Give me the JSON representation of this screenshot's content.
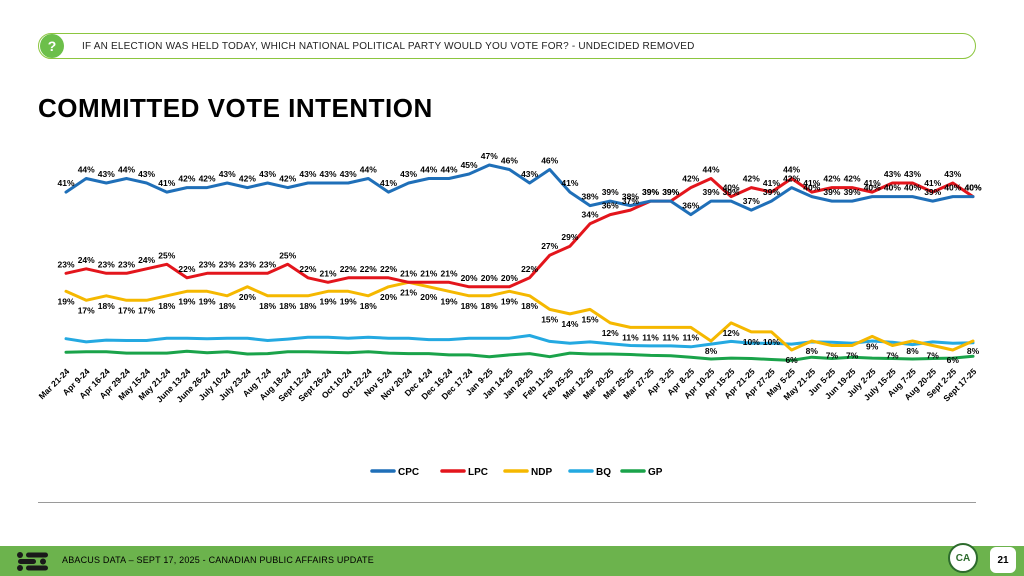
{
  "header": {
    "question": "IF AN ELECTION WAS HELD TODAY, WHICH NATIONAL POLITICAL PARTY WOULD YOU VOTE FOR? - UNDECIDED REMOVED",
    "icon": "question-icon",
    "title": "COMMITTED VOTE INTENTION"
  },
  "footer": {
    "text": "ABACUS DATA – SEPT 17, 2025 - CANADIAN PUBLIC AFFAIRS UPDATE",
    "logo_text": "CA",
    "page_number": "21"
  },
  "colors": {
    "accent_green": "#6cb34d",
    "CPC": "#1f6fb8",
    "LPC": "#e3151c",
    "NDP": "#f5b800",
    "BQ": "#24a9e1",
    "GP": "#1aa34a"
  },
  "chart_data": {
    "type": "line",
    "legend_position": "bottom",
    "grid": false,
    "categories": [
      "Mar 21-24",
      "Apr 9-24",
      "Apr 16-24",
      "Apr 29-24",
      "May 15-24",
      "May 21-24",
      "June 13-24",
      "June 26-24",
      "July 10-24",
      "July 23-24",
      "Aug 7-24",
      "Aug 18-24",
      "Sept 12-24",
      "Sept 26-24",
      "Oct 10-24",
      "Oct 22-24",
      "Nov 5-24",
      "Nov 20-24",
      "Dec 4-24",
      "Dec 16-24",
      "Dec 17-24",
      "Jan 9-25",
      "Jan 14-25",
      "Jan 28-25",
      "Feb 11-25",
      "Feb 25-25",
      "Mar 12-25",
      "Mar 20-25",
      "Mar 25-25",
      "Mar 27-25",
      "Apr 3-25",
      "Apr 8-25",
      "Apr 10-25",
      "Apr 15-25",
      "Apr 21-25",
      "Apr 27-25",
      "May 5-25",
      "May 21-25",
      "Jun 5-25",
      "Jun 19-25",
      "July 2-25",
      "July 15-25",
      "Aug 7-25",
      "Aug 20-25",
      "Sept 2-25",
      "Sept 17-25"
    ],
    "series": [
      {
        "name": "CPC",
        "color": "#1f6fb8",
        "label_pos": "above",
        "values": [
          41,
          44,
          43,
          44,
          43,
          41,
          42,
          42,
          43,
          42,
          43,
          42,
          43,
          43,
          43,
          44,
          41,
          43,
          44,
          44,
          45,
          47,
          46,
          43,
          46,
          41,
          38,
          39,
          38,
          39,
          39,
          36,
          39,
          39,
          37,
          39,
          42,
          40,
          39,
          39,
          40,
          40,
          40,
          39,
          40,
          40
        ]
      },
      {
        "name": "LPC",
        "color": "#e3151c",
        "label_pos": "above",
        "values": [
          23,
          24,
          23,
          23,
          24,
          25,
          22,
          23,
          23,
          23,
          23,
          25,
          22,
          21,
          22,
          22,
          22,
          21,
          21,
          21,
          20,
          20,
          20,
          22,
          27,
          29,
          34,
          36,
          37,
          39,
          39,
          42,
          44,
          40,
          42,
          41,
          44,
          41,
          42,
          42,
          41,
          43,
          43,
          41,
          43,
          40
        ]
      },
      {
        "name": "NDP",
        "color": "#f5b800",
        "label_pos": "below",
        "values": [
          19,
          17,
          18,
          17,
          17,
          18,
          19,
          19,
          18,
          20,
          18,
          18,
          18,
          19,
          19,
          18,
          20,
          21,
          20,
          19,
          18,
          18,
          19,
          18,
          15,
          14,
          15,
          12,
          11,
          11,
          11,
          11,
          8,
          12,
          10,
          10,
          6,
          8,
          7,
          7,
          9,
          7,
          8,
          7,
          6,
          8
        ]
      },
      {
        "name": "BQ",
        "color": "#24a9e1",
        "label_pos": "none",
        "values": [
          8.5,
          7.8,
          8.2,
          8.1,
          8.1,
          8.6,
          8.6,
          8.5,
          8.6,
          8.6,
          8.1,
          8.4,
          8.8,
          8.8,
          8.6,
          8.8,
          8.6,
          8.6,
          8.3,
          8.3,
          8.6,
          8.6,
          8.6,
          9.2,
          7.9,
          7.5,
          7.8,
          7.4,
          7.0,
          6.9,
          6.9,
          6.7,
          7.3,
          7.9,
          7.5,
          7.5,
          7.3,
          7.8,
          7.7,
          7.5,
          8.0,
          7.7,
          7.2,
          7.8,
          7.5,
          7.6
        ]
      },
      {
        "name": "GP",
        "color": "#1aa34a",
        "label_pos": "none",
        "values": [
          5.5,
          5.6,
          5.6,
          5.3,
          5.3,
          5.3,
          5.7,
          5.4,
          5.6,
          5.1,
          5.2,
          5.6,
          5.6,
          5.5,
          5.4,
          5.6,
          5.3,
          5.2,
          5.2,
          4.9,
          4.9,
          4.5,
          4.9,
          5.2,
          4.5,
          5.3,
          5.1,
          5.1,
          5.0,
          4.8,
          4.7,
          4.4,
          4.0,
          4.2,
          4.1,
          3.9,
          3.7,
          4.4,
          4.1,
          4.4,
          4.2,
          4.1,
          4.0,
          4.1,
          4.2,
          4.6
        ]
      }
    ]
  }
}
